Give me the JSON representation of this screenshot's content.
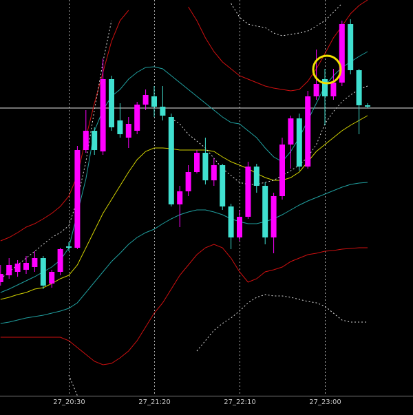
{
  "chart_data": {
    "type": "candlestick",
    "categories": [
      null,
      null,
      null,
      null,
      null,
      null,
      null,
      null,
      "27_20:30",
      null,
      null,
      null,
      null,
      null,
      null,
      null,
      null,
      null,
      "27_21:20",
      null,
      null,
      null,
      null,
      null,
      null,
      null,
      null,
      null,
      "27_22:10",
      null,
      null,
      null,
      null,
      null,
      null,
      null,
      null,
      null,
      "27_23:00",
      null,
      null,
      null,
      null,
      null
    ],
    "open": [
      190,
      200,
      205,
      208,
      212,
      225,
      188,
      205,
      242,
      240,
      382,
      410,
      380,
      485,
      425,
      400,
      410,
      448,
      460,
      445,
      430,
      303,
      322,
      350,
      378,
      338,
      360,
      300,
      255,
      285,
      358,
      330,
      255,
      315,
      390,
      428,
      358,
      460,
      485,
      460,
      480,
      565,
      498,
      447
    ],
    "high": [
      215,
      225,
      222,
      228,
      235,
      228,
      208,
      240,
      248,
      388,
      440,
      415,
      515,
      490,
      450,
      430,
      452,
      470,
      475,
      475,
      435,
      330,
      360,
      382,
      400,
      370,
      362,
      304,
      295,
      365,
      362,
      335,
      320,
      400,
      432,
      435,
      468,
      528,
      500,
      500,
      570,
      572,
      500,
      450
    ],
    "low": [
      185,
      195,
      198,
      202,
      205,
      180,
      182,
      200,
      235,
      238,
      378,
      375,
      375,
      410,
      400,
      385,
      405,
      440,
      430,
      425,
      300,
      270,
      315,
      348,
      332,
      330,
      295,
      238,
      250,
      282,
      320,
      245,
      232,
      310,
      355,
      352,
      355,
      455,
      418,
      455,
      475,
      492,
      405,
      443
    ],
    "close": [
      202,
      215,
      217,
      218,
      225,
      185,
      205,
      238,
      240,
      382,
      410,
      382,
      485,
      415,
      405,
      420,
      448,
      462,
      445,
      432,
      303,
      322,
      350,
      378,
      338,
      360,
      300,
      255,
      285,
      358,
      330,
      255,
      315,
      390,
      428,
      358,
      460,
      478,
      460,
      480,
      565,
      498,
      447,
      445
    ],
    "up_color": "#ff00ff",
    "down_color": "#40e0d0",
    "lines": [
      {
        "color": "#d4d400",
        "dashed": false,
        "values": [
          165,
          168,
          172,
          175,
          180,
          182,
          188,
          195,
          200,
          215,
          240,
          265,
          290,
          310,
          330,
          350,
          368,
          380,
          385,
          385,
          384,
          382,
          382,
          382,
          382,
          380,
          372,
          365,
          360,
          355,
          348,
          342,
          338,
          338,
          342,
          350,
          365,
          380,
          390,
          400,
          410,
          418,
          425,
          432
        ]
      },
      {
        "color": "#20a0a0",
        "dashed": false,
        "values": [
          175,
          180,
          186,
          192,
          198,
          205,
          212,
          222,
          240,
          290,
          340,
          410,
          440,
          460,
          470,
          485,
          495,
          502,
          503,
          500,
          490,
          480,
          470,
          460,
          450,
          440,
          430,
          422,
          420,
          410,
          400,
          385,
          372,
          365,
          380,
          400,
          425,
          450,
          475,
          490,
          502,
          510,
          518,
          525
        ]
      },
      {
        "color": "#20a0a0",
        "dashed": false,
        "values": [
          130,
          132,
          135,
          138,
          140,
          142,
          145,
          148,
          152,
          160,
          175,
          190,
          205,
          220,
          232,
          245,
          255,
          262,
          267,
          275,
          282,
          288,
          292,
          295,
          295,
          292,
          288,
          282,
          278,
          275,
          275,
          278,
          282,
          288,
          295,
          302,
          308,
          313,
          318,
          323,
          328,
          332,
          334,
          335
        ]
      },
      {
        "color": "#d01010",
        "dashed": false,
        "values": [
          250,
          255,
          262,
          270,
          275,
          282,
          290,
          300,
          315,
          345,
          400,
          450,
          495,
          540,
          570,
          585,
          null,
          null,
          null,
          null,
          null,
          null,
          590,
          570,
          545,
          525,
          510,
          500,
          490,
          485,
          480,
          475,
          472,
          470,
          468,
          470,
          482,
          500,
          522,
          545,
          562,
          580,
          592,
          600
        ]
      },
      {
        "color": "#d01010",
        "dashed": false,
        "values": [
          110,
          110,
          110,
          110,
          110,
          110,
          110,
          110,
          105,
          95,
          85,
          75,
          70,
          72,
          80,
          90,
          105,
          125,
          145,
          160,
          180,
          200,
          215,
          230,
          240,
          245,
          240,
          225,
          205,
          190,
          195,
          205,
          208,
          212,
          220,
          225,
          230,
          232,
          235,
          236,
          238,
          239,
          240,
          240
        ]
      },
      {
        "color": "#e0e0e0",
        "dashed": true,
        "values": [
          195,
          205,
          215,
          225,
          235,
          245,
          255,
          262,
          272,
          310,
          365,
          440,
          510,
          570,
          null,
          null,
          null,
          null,
          null,
          null,
          null,
          null,
          null,
          null,
          null,
          null,
          null,
          595,
          575,
          565,
          562,
          560,
          552,
          548,
          550,
          552,
          555,
          562,
          570,
          582,
          595,
          null,
          null,
          null
        ]
      },
      {
        "color": "#e0e0e0",
        "dashed": true,
        "values": [
          null,
          null,
          null,
          null,
          null,
          null,
          null,
          null,
          55,
          25,
          null,
          null,
          null,
          null,
          null,
          null,
          null,
          null,
          null,
          null,
          null,
          null,
          null,
          90,
          105,
          120,
          130,
          138,
          148,
          160,
          168,
          172,
          170,
          170,
          168,
          165,
          162,
          160,
          155,
          145,
          135,
          132,
          132,
          132
        ]
      },
      {
        "color": "#e0e0e0",
        "dashed": true,
        "values": [
          null,
          null,
          null,
          null,
          null,
          null,
          null,
          null,
          null,
          null,
          null,
          null,
          null,
          null,
          null,
          null,
          null,
          null,
          null,
          null,
          428,
          420,
          405,
          395,
          385,
          370,
          355,
          345,
          335,
          332,
          332,
          335,
          338,
          345,
          352,
          360,
          372,
          390,
          420,
          438,
          452,
          462,
          470,
          475
        ]
      }
    ],
    "hline": 443,
    "ylim": [
      25,
      600
    ]
  }
}
